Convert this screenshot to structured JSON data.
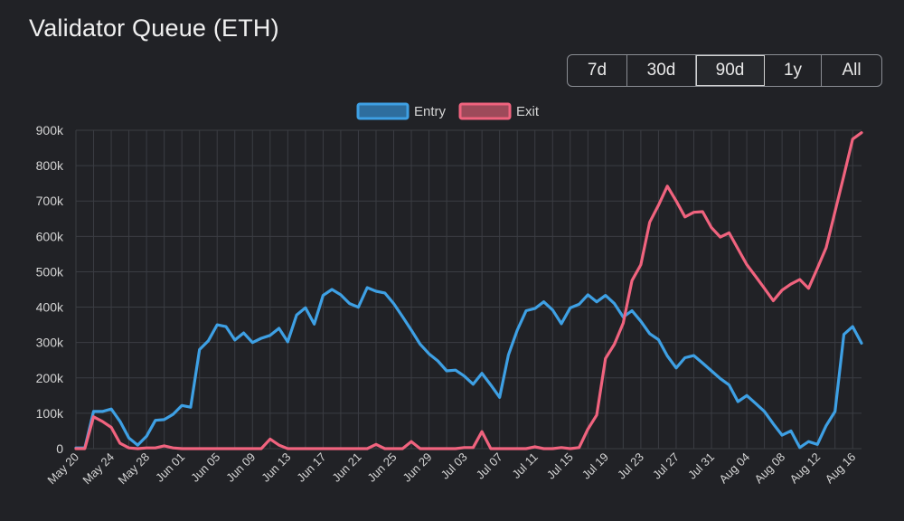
{
  "title": "Validator Queue (ETH)",
  "range_buttons": [
    {
      "label": "7d",
      "active": false
    },
    {
      "label": "30d",
      "active": false
    },
    {
      "label": "90d",
      "active": true
    },
    {
      "label": "1y",
      "active": false
    },
    {
      "label": "All",
      "active": false
    }
  ],
  "chart_data": {
    "type": "line",
    "legend_position": "top",
    "grid": true,
    "ylim": [
      0,
      900000
    ],
    "y_ticks": [
      {
        "value": 0,
        "label": "0"
      },
      {
        "value": 100000,
        "label": "100k"
      },
      {
        "value": 200000,
        "label": "200k"
      },
      {
        "value": 300000,
        "label": "300k"
      },
      {
        "value": 400000,
        "label": "400k"
      },
      {
        "value": 500000,
        "label": "500k"
      },
      {
        "value": 600000,
        "label": "600k"
      },
      {
        "value": 700000,
        "label": "700k"
      },
      {
        "value": 800000,
        "label": "800k"
      },
      {
        "value": 900000,
        "label": "900k"
      }
    ],
    "x_start": "2025-05-20",
    "x_end": "2025-08-17",
    "x_ticks": [
      "May 20",
      "May 24",
      "May 28",
      "Jun 01",
      "Jun 05",
      "Jun 09",
      "Jun 13",
      "Jun 17",
      "Jun 21",
      "Jun 25",
      "Jun 29",
      "Jul 03",
      "Jul 07",
      "Jul 11",
      "Jul 15",
      "Jul 19",
      "Jul 23",
      "Jul 27",
      "Jul 31",
      "Aug 04",
      "Aug 08",
      "Aug 12",
      "Aug 16"
    ],
    "series": [
      {
        "name": "Entry",
        "color": "#3ea0e4",
        "fill": "#2e6e9e",
        "values": [
          [
            "2025-05-20",
            2000
          ],
          [
            "2025-05-21",
            2000
          ],
          [
            "2025-05-22",
            105000
          ],
          [
            "2025-05-23",
            105000
          ],
          [
            "2025-05-24",
            112000
          ],
          [
            "2025-05-25",
            77000
          ],
          [
            "2025-05-26",
            30000
          ],
          [
            "2025-05-27",
            10000
          ],
          [
            "2025-05-28",
            35000
          ],
          [
            "2025-05-29",
            80000
          ],
          [
            "2025-05-30",
            82000
          ],
          [
            "2025-05-31",
            97000
          ],
          [
            "2025-06-01",
            122000
          ],
          [
            "2025-06-02",
            117000
          ],
          [
            "2025-06-03",
            280000
          ],
          [
            "2025-06-04",
            305000
          ],
          [
            "2025-06-05",
            350000
          ],
          [
            "2025-06-06",
            345000
          ],
          [
            "2025-06-07",
            307000
          ],
          [
            "2025-06-08",
            327000
          ],
          [
            "2025-06-09",
            300000
          ],
          [
            "2025-06-10",
            312000
          ],
          [
            "2025-06-11",
            320000
          ],
          [
            "2025-06-12",
            340000
          ],
          [
            "2025-06-13",
            302000
          ],
          [
            "2025-06-14",
            378000
          ],
          [
            "2025-06-15",
            398000
          ],
          [
            "2025-06-16",
            352000
          ],
          [
            "2025-06-17",
            433000
          ],
          [
            "2025-06-18",
            450000
          ],
          [
            "2025-06-19",
            435000
          ],
          [
            "2025-06-20",
            410000
          ],
          [
            "2025-06-21",
            400000
          ],
          [
            "2025-06-22",
            455000
          ],
          [
            "2025-06-23",
            445000
          ],
          [
            "2025-06-24",
            440000
          ],
          [
            "2025-06-25",
            410000
          ],
          [
            "2025-06-26",
            373000
          ],
          [
            "2025-06-27",
            335000
          ],
          [
            "2025-06-28",
            295000
          ],
          [
            "2025-06-29",
            268000
          ],
          [
            "2025-06-30",
            248000
          ],
          [
            "2025-07-01",
            220000
          ],
          [
            "2025-07-02",
            222000
          ],
          [
            "2025-07-03",
            205000
          ],
          [
            "2025-07-04",
            182000
          ],
          [
            "2025-07-05",
            213000
          ],
          [
            "2025-07-06",
            180000
          ],
          [
            "2025-07-07",
            145000
          ],
          [
            "2025-07-08",
            265000
          ],
          [
            "2025-07-09",
            335000
          ],
          [
            "2025-07-10",
            390000
          ],
          [
            "2025-07-11",
            396000
          ],
          [
            "2025-07-12",
            415000
          ],
          [
            "2025-07-13",
            392000
          ],
          [
            "2025-07-14",
            353000
          ],
          [
            "2025-07-15",
            398000
          ],
          [
            "2025-07-16",
            408000
          ],
          [
            "2025-07-17",
            435000
          ],
          [
            "2025-07-18",
            415000
          ],
          [
            "2025-07-19",
            433000
          ],
          [
            "2025-07-20",
            410000
          ],
          [
            "2025-07-21",
            372000
          ],
          [
            "2025-07-22",
            390000
          ],
          [
            "2025-07-23",
            360000
          ],
          [
            "2025-07-24",
            325000
          ],
          [
            "2025-07-25",
            308000
          ],
          [
            "2025-07-26",
            262000
          ],
          [
            "2025-07-27",
            228000
          ],
          [
            "2025-07-28",
            257000
          ],
          [
            "2025-07-29",
            263000
          ],
          [
            "2025-07-30",
            242000
          ],
          [
            "2025-07-31",
            220000
          ],
          [
            "2025-08-01",
            198000
          ],
          [
            "2025-08-02",
            180000
          ],
          [
            "2025-08-03",
            133000
          ],
          [
            "2025-08-04",
            150000
          ],
          [
            "2025-08-05",
            128000
          ],
          [
            "2025-08-06",
            105000
          ],
          [
            "2025-08-07",
            70000
          ],
          [
            "2025-08-08",
            38000
          ],
          [
            "2025-08-09",
            50000
          ],
          [
            "2025-08-10",
            3000
          ],
          [
            "2025-08-11",
            20000
          ],
          [
            "2025-08-12",
            12000
          ],
          [
            "2025-08-13",
            65000
          ],
          [
            "2025-08-14",
            105000
          ],
          [
            "2025-08-15",
            323000
          ],
          [
            "2025-08-16",
            345000
          ],
          [
            "2025-08-17",
            298000
          ]
        ]
      },
      {
        "name": "Exit",
        "color": "#f0637e",
        "fill": "#9e4a5a",
        "values": [
          [
            "2025-05-20",
            0
          ],
          [
            "2025-05-21",
            0
          ],
          [
            "2025-05-22",
            90000
          ],
          [
            "2025-05-23",
            77000
          ],
          [
            "2025-05-24",
            60000
          ],
          [
            "2025-05-25",
            15000
          ],
          [
            "2025-05-26",
            2000
          ],
          [
            "2025-05-27",
            0
          ],
          [
            "2025-05-28",
            2000
          ],
          [
            "2025-05-29",
            2000
          ],
          [
            "2025-05-30",
            8000
          ],
          [
            "2025-05-31",
            2000
          ],
          [
            "2025-06-01",
            0
          ],
          [
            "2025-06-02",
            0
          ],
          [
            "2025-06-03",
            0
          ],
          [
            "2025-06-04",
            0
          ],
          [
            "2025-06-05",
            0
          ],
          [
            "2025-06-06",
            0
          ],
          [
            "2025-06-07",
            0
          ],
          [
            "2025-06-08",
            0
          ],
          [
            "2025-06-09",
            0
          ],
          [
            "2025-06-10",
            0
          ],
          [
            "2025-06-11",
            27000
          ],
          [
            "2025-06-12",
            10000
          ],
          [
            "2025-06-13",
            0
          ],
          [
            "2025-06-14",
            0
          ],
          [
            "2025-06-15",
            0
          ],
          [
            "2025-06-16",
            0
          ],
          [
            "2025-06-17",
            0
          ],
          [
            "2025-06-18",
            0
          ],
          [
            "2025-06-19",
            0
          ],
          [
            "2025-06-20",
            0
          ],
          [
            "2025-06-21",
            0
          ],
          [
            "2025-06-22",
            0
          ],
          [
            "2025-06-23",
            12000
          ],
          [
            "2025-06-24",
            0
          ],
          [
            "2025-06-25",
            0
          ],
          [
            "2025-06-26",
            0
          ],
          [
            "2025-06-27",
            20000
          ],
          [
            "2025-06-28",
            0
          ],
          [
            "2025-06-29",
            0
          ],
          [
            "2025-06-30",
            0
          ],
          [
            "2025-07-01",
            0
          ],
          [
            "2025-07-02",
            0
          ],
          [
            "2025-07-03",
            3000
          ],
          [
            "2025-07-04",
            3000
          ],
          [
            "2025-07-05",
            48000
          ],
          [
            "2025-07-06",
            0
          ],
          [
            "2025-07-07",
            0
          ],
          [
            "2025-07-08",
            0
          ],
          [
            "2025-07-09",
            0
          ],
          [
            "2025-07-10",
            0
          ],
          [
            "2025-07-11",
            5000
          ],
          [
            "2025-07-12",
            0
          ],
          [
            "2025-07-13",
            0
          ],
          [
            "2025-07-14",
            3000
          ],
          [
            "2025-07-15",
            0
          ],
          [
            "2025-07-16",
            3000
          ],
          [
            "2025-07-17",
            55000
          ],
          [
            "2025-07-18",
            95000
          ],
          [
            "2025-07-19",
            255000
          ],
          [
            "2025-07-20",
            295000
          ],
          [
            "2025-07-21",
            355000
          ],
          [
            "2025-07-22",
            475000
          ],
          [
            "2025-07-23",
            520000
          ],
          [
            "2025-07-24",
            640000
          ],
          [
            "2025-07-25",
            688000
          ],
          [
            "2025-07-26",
            742000
          ],
          [
            "2025-07-27",
            700000
          ],
          [
            "2025-07-28",
            655000
          ],
          [
            "2025-07-29",
            668000
          ],
          [
            "2025-07-30",
            670000
          ],
          [
            "2025-07-31",
            625000
          ],
          [
            "2025-08-01",
            598000
          ],
          [
            "2025-08-02",
            610000
          ],
          [
            "2025-08-03",
            565000
          ],
          [
            "2025-08-04",
            520000
          ],
          [
            "2025-08-05",
            487000
          ],
          [
            "2025-08-06",
            453000
          ],
          [
            "2025-08-07",
            418000
          ],
          [
            "2025-08-08",
            448000
          ],
          [
            "2025-08-09",
            465000
          ],
          [
            "2025-08-10",
            478000
          ],
          [
            "2025-08-11",
            453000
          ],
          [
            "2025-08-12",
            510000
          ],
          [
            "2025-08-13",
            568000
          ],
          [
            "2025-08-14",
            670000
          ],
          [
            "2025-08-15",
            772000
          ],
          [
            "2025-08-16",
            875000
          ],
          [
            "2025-08-17",
            893000
          ]
        ]
      }
    ]
  }
}
